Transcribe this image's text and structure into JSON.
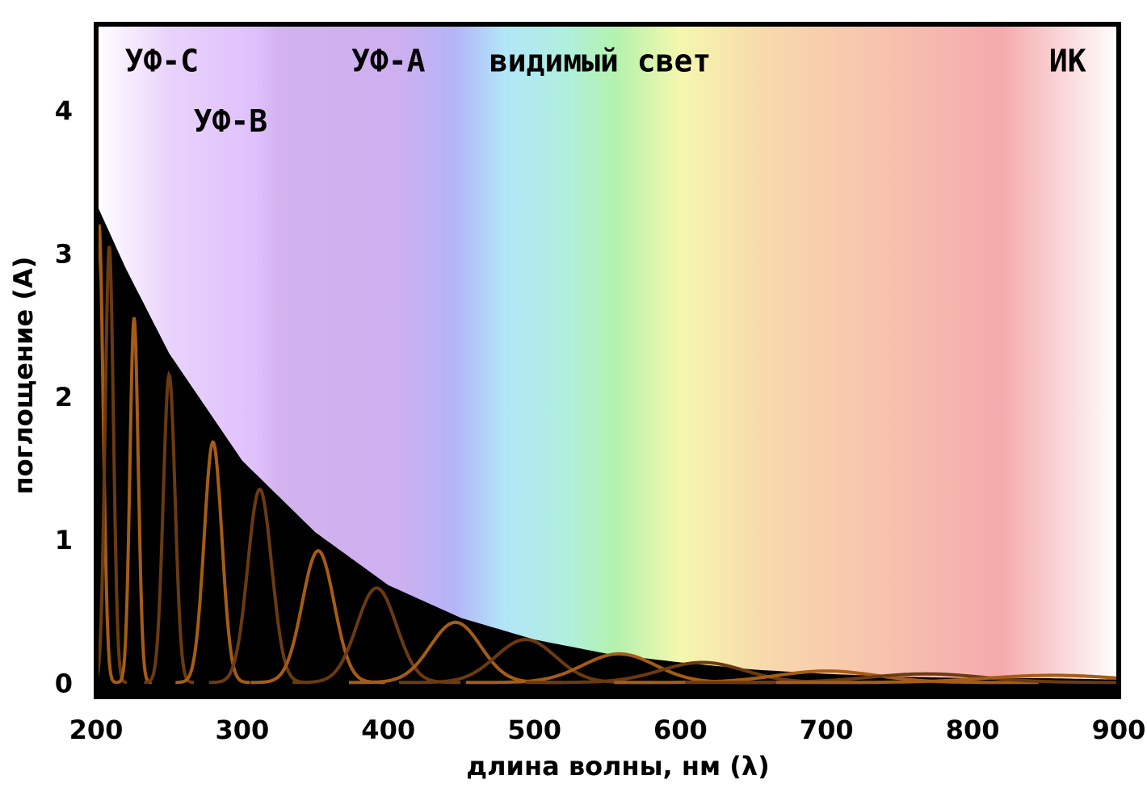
{
  "chart_data": {
    "type": "line",
    "xlabel": "длина волны, нм (λ)",
    "ylabel": "поглощение (A)",
    "xlim": [
      200,
      900
    ],
    "ylim": [
      -0.1,
      4.6
    ],
    "grid": false,
    "x_ticks": [
      "200",
      "300",
      "400",
      "500",
      "600",
      "700",
      "800",
      "900"
    ],
    "y_ticks": [
      "0",
      "1",
      "2",
      "3",
      "4"
    ],
    "regions": [
      {
        "label": "УФ-C",
        "x": 245,
        "y": 4.27
      },
      {
        "label": "УФ-B",
        "x": 292,
        "y": 3.85
      },
      {
        "label": "УФ-A",
        "x": 400,
        "y": 4.27
      },
      {
        "label": "видимый свет",
        "x": 545,
        "y": 4.27
      },
      {
        "label": "ИК",
        "x": 865,
        "y": 4.27
      }
    ],
    "envelope": {
      "name": "",
      "x": [
        200,
        220,
        250,
        300,
        350,
        400,
        450,
        500,
        550,
        600,
        650,
        700,
        750,
        800,
        850,
        900
      ],
      "values": [
        3.35,
        2.9,
        2.3,
        1.55,
        1.05,
        0.68,
        0.45,
        0.3,
        0.2,
        0.14,
        0.09,
        0.06,
        0.04,
        0.03,
        0.03,
        0.02
      ]
    },
    "oscillation_peaks": [
      {
        "x": 202,
        "value": 3.2
      },
      {
        "x": 209,
        "value": 3.05
      },
      {
        "x": 226,
        "value": 2.55
      },
      {
        "x": 250,
        "value": 2.15
      },
      {
        "x": 280,
        "value": 1.68
      },
      {
        "x": 312,
        "value": 1.35
      },
      {
        "x": 352,
        "value": 0.92
      },
      {
        "x": 392,
        "value": 0.66
      },
      {
        "x": 446,
        "value": 0.42
      },
      {
        "x": 494,
        "value": 0.3
      },
      {
        "x": 558,
        "value": 0.2
      },
      {
        "x": 615,
        "value": 0.14
      },
      {
        "x": 700,
        "value": 0.08
      },
      {
        "x": 768,
        "value": 0.06
      },
      {
        "x": 855,
        "value": 0.05
      }
    ],
    "spectrum_colors": [
      {
        "x": 200,
        "color": "#ffffff"
      },
      {
        "x": 250,
        "color": "#e9d3fb"
      },
      {
        "x": 310,
        "color": "#dfc0fb"
      },
      {
        "x": 325,
        "color": "#d3b2ee"
      },
      {
        "x": 410,
        "color": "#cdb0f0"
      },
      {
        "x": 445,
        "color": "#b4b4f8"
      },
      {
        "x": 480,
        "color": "#b2e6f8"
      },
      {
        "x": 520,
        "color": "#b0eee0"
      },
      {
        "x": 555,
        "color": "#b3f2ae"
      },
      {
        "x": 600,
        "color": "#f5f7ae"
      },
      {
        "x": 660,
        "color": "#f8d8ac"
      },
      {
        "x": 740,
        "color": "#f7c2ae"
      },
      {
        "x": 820,
        "color": "#f5aaad"
      },
      {
        "x": 900,
        "color": "#ffffff"
      }
    ],
    "colors": {
      "fill_under_curve": "#000000",
      "oscillation_bright": "#a65c15",
      "oscillation_dim": "#6b3a10",
      "frame": "#000000"
    }
  }
}
